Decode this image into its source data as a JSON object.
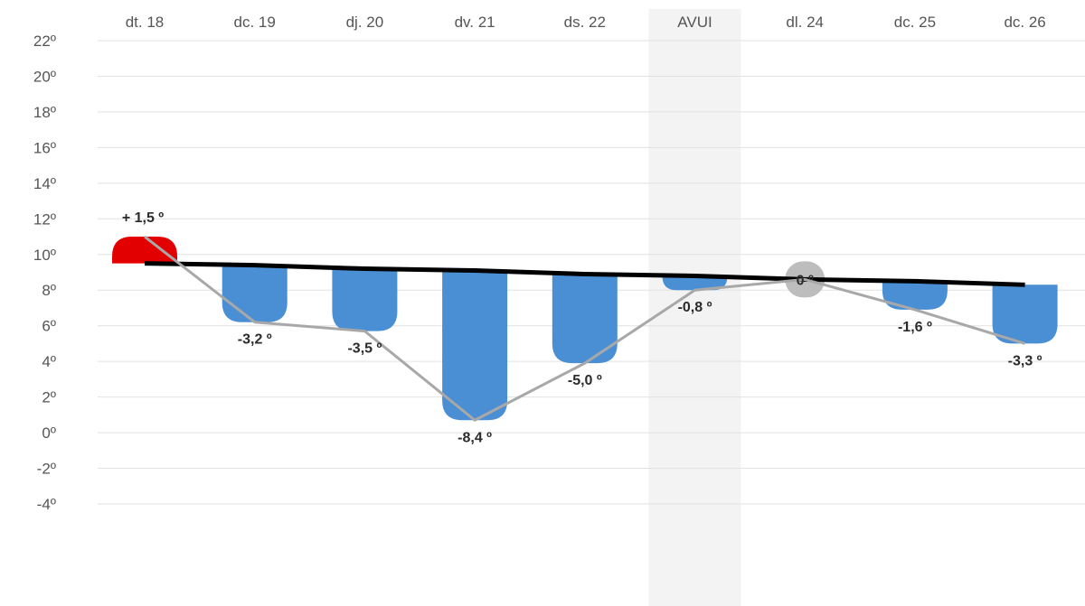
{
  "chart_data": {
    "type": "bar",
    "categories": [
      "dt. 18",
      "dc. 19",
      "dj. 20",
      "dv. 21",
      "ds. 22",
      "AVUI",
      "dl. 24",
      "dc. 25",
      "dc. 26"
    ],
    "highlight_category": "AVUI",
    "y_ticks": [
      "22º",
      "20º",
      "18º",
      "16º",
      "14º",
      "12º",
      "10º",
      "8º",
      "6º",
      "4º",
      "2º",
      "0º",
      "-2º",
      "-4º"
    ],
    "ylim": [
      -4,
      22
    ],
    "grid": true,
    "series": [
      {
        "kind": "reference_line",
        "color": "#000000",
        "values": [
          9.5,
          9.4,
          9.2,
          9.1,
          8.9,
          8.8,
          8.6,
          8.5,
          8.3
        ]
      },
      {
        "kind": "temperature_line",
        "color": "#a8a8a8",
        "values": [
          11.0,
          6.2,
          5.7,
          0.7,
          3.9,
          8.0,
          8.6,
          6.9,
          5.0
        ]
      }
    ],
    "deviations": [
      1.5,
      -3.2,
      -3.5,
      -8.4,
      -5.0,
      -0.8,
      0,
      -1.6,
      -3.3
    ],
    "deviation_labels": [
      "+ 1,5 º",
      "-3,2 º",
      "-3,5 º",
      "-8,4 º",
      "-5,0 º",
      "-0,8 º",
      "0 º",
      "-1,6 º",
      "-3,3 º"
    ],
    "colors": {
      "positive": "#e30000",
      "negative": "#4a8fd4",
      "zero": "#bdbdbd",
      "highlight_band": "#f3f3f3",
      "grid": "#e2e2e2"
    }
  }
}
